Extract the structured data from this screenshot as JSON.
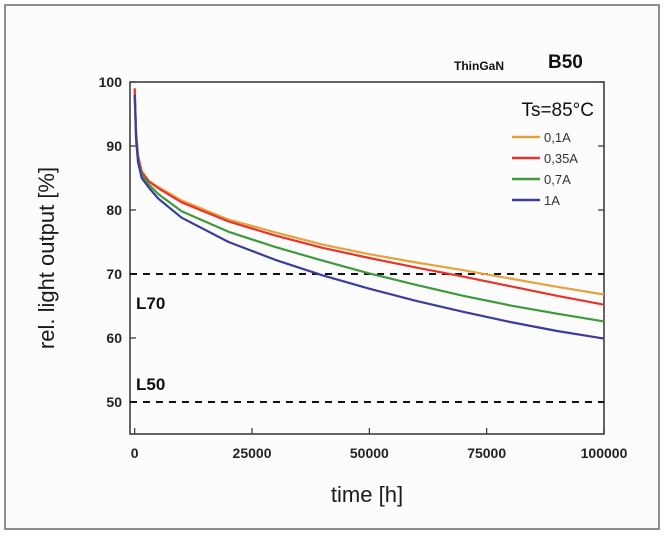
{
  "chart_data": {
    "type": "line",
    "header_small": "ThinGaN",
    "header_big": "B50",
    "condition": "Ts=85°C",
    "xlabel": "time [h]",
    "ylabel": "rel. light output [%]",
    "xlim": [
      -1000,
      100000
    ],
    "ylim": [
      45,
      100
    ],
    "x_ticks": [
      0,
      25000,
      50000,
      75000,
      100000
    ],
    "y_ticks": [
      50,
      60,
      70,
      80,
      90,
      100
    ],
    "grid": false,
    "legend_position": "top-right",
    "reference_lines": [
      {
        "label": "L70",
        "y": 70
      },
      {
        "label": "L50",
        "y": 50
      }
    ],
    "x": [
      0,
      300,
      700,
      1500,
      3000,
      5000,
      10000,
      20000,
      30000,
      40000,
      50000,
      60000,
      70000,
      80000,
      90000,
      100000
    ],
    "series": [
      {
        "name": "0,1A",
        "color": "#e8a23a",
        "values": [
          99,
          92,
          88.5,
          86,
          84.5,
          83.6,
          81.5,
          78.5,
          76.5,
          74.6,
          73.1,
          71.8,
          70.6,
          69.3,
          68,
          66.8
        ]
      },
      {
        "name": "0,35A",
        "color": "#e8352a",
        "values": [
          99,
          92,
          88.5,
          86,
          84.5,
          83.4,
          81.2,
          78.2,
          76,
          74.1,
          72.5,
          71,
          69.6,
          68.1,
          66.6,
          65.2
        ]
      },
      {
        "name": "0,7A",
        "color": "#3d9a3a",
        "values": [
          98,
          91.5,
          88,
          85.5,
          84,
          82.5,
          79.8,
          76.6,
          74.2,
          72.1,
          70.1,
          68.3,
          66.6,
          65.1,
          63.8,
          62.6
        ]
      },
      {
        "name": "1A",
        "color": "#3a3d9e",
        "values": [
          98,
          91,
          87.5,
          85,
          83.5,
          81.8,
          78.8,
          75,
          72.2,
          69.8,
          67.7,
          65.8,
          64.1,
          62.5,
          61.1,
          59.9
        ]
      }
    ]
  }
}
